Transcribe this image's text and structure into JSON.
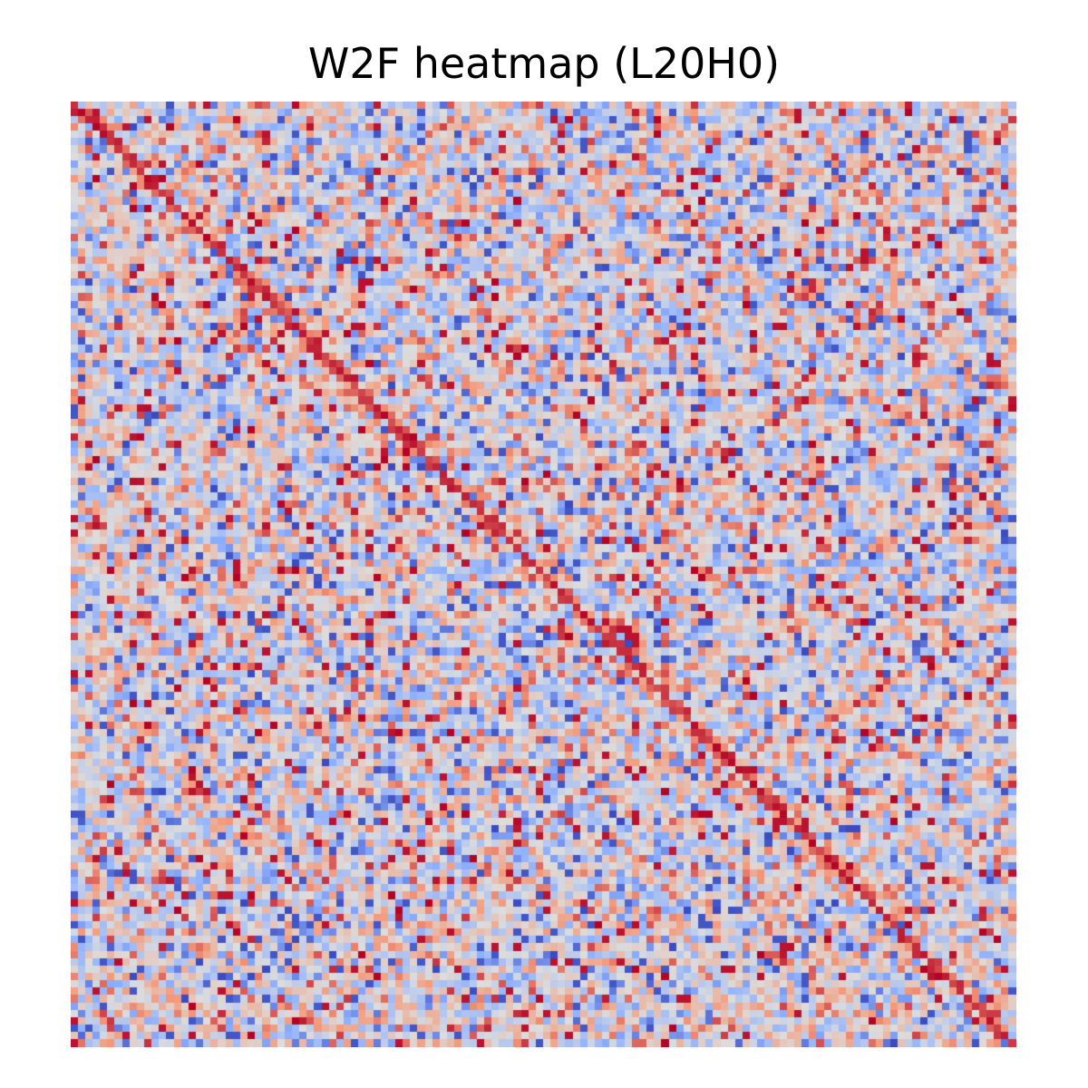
{
  "chart_data": {
    "type": "heatmap",
    "title": "W2F heatmap (L20H0)",
    "xlabel": "",
    "ylabel": "",
    "colormap": "coolwarm",
    "colormap_stops": [
      "#3b4cc0",
      "#8db0fe",
      "#dddddd",
      "#f49a7b",
      "#b40426"
    ],
    "value_range": [
      -1,
      1
    ],
    "rows": 128,
    "cols": 128,
    "axes_visible": false,
    "grid": false,
    "legend": "none",
    "pattern": "noisy matrix of values in [-1, 1] with a strong positive diagonal band running from top-left to bottom-right"
  }
}
